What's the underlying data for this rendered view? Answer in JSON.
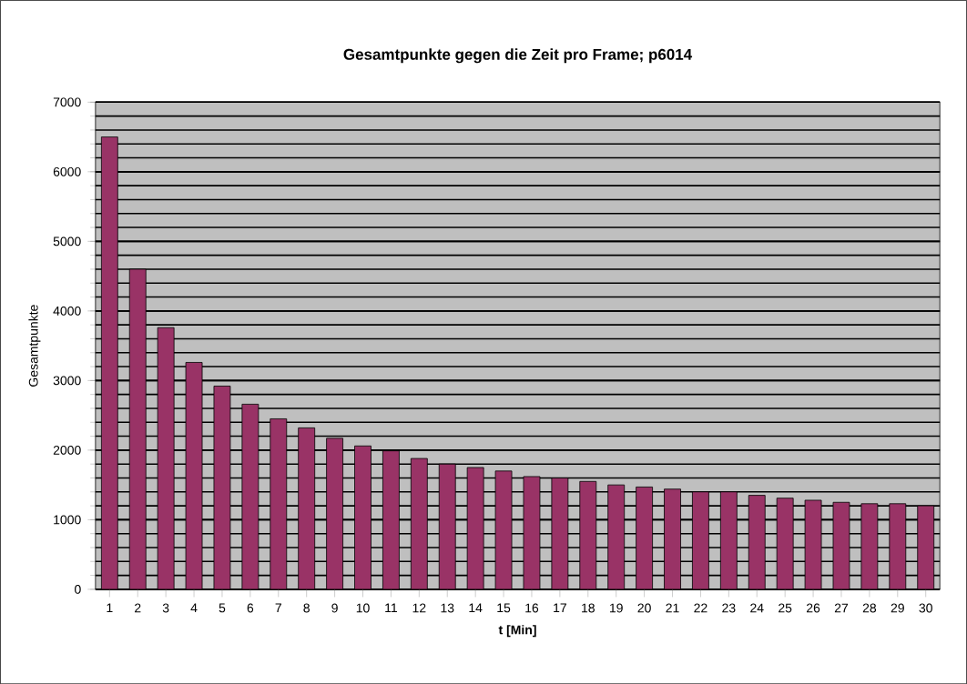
{
  "chart_data": {
    "type": "bar",
    "title": "Gesamtpunkte gegen die Zeit pro Frame; p6014",
    "xlabel": "t [Min]",
    "ylabel": "Gesamtpunkte",
    "categories": [
      "1",
      "2",
      "3",
      "4",
      "5",
      "6",
      "7",
      "8",
      "9",
      "10",
      "11",
      "12",
      "13",
      "14",
      "15",
      "16",
      "17",
      "18",
      "19",
      "20",
      "21",
      "22",
      "23",
      "24",
      "25",
      "26",
      "27",
      "28",
      "29",
      "30"
    ],
    "values": [
      6500,
      4600,
      3760,
      3260,
      2920,
      2660,
      2450,
      2320,
      2170,
      2060,
      1990,
      1880,
      1800,
      1750,
      1700,
      1620,
      1600,
      1550,
      1500,
      1470,
      1440,
      1400,
      1400,
      1350,
      1310,
      1280,
      1250,
      1230,
      1230,
      1200
    ],
    "color": "#993366",
    "ylim": [
      0,
      7000
    ],
    "yticks": [
      0,
      1000,
      2000,
      3000,
      4000,
      5000,
      6000,
      7000
    ],
    "grid": "y"
  }
}
